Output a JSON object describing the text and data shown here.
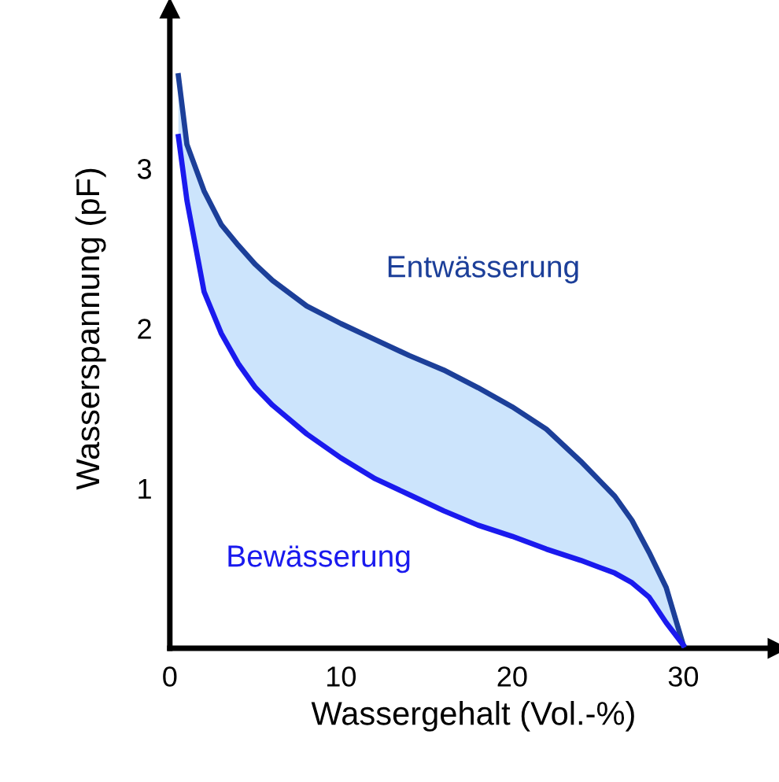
{
  "chart_data": {
    "type": "line",
    "xlabel": "Wassergehalt (Vol.-%)",
    "ylabel": "Wasserspannung (pF)",
    "x": [
      0.5,
      1,
      2,
      3,
      4,
      5,
      6,
      8,
      10,
      12,
      14,
      16,
      18,
      20,
      22,
      24,
      26,
      27,
      28,
      29,
      30
    ],
    "series": [
      {
        "name": "Entwässerung",
        "color": "#1c3f99",
        "values": [
          3.58,
          3.15,
          2.86,
          2.65,
          2.52,
          2.4,
          2.3,
          2.14,
          2.03,
          1.93,
          1.83,
          1.74,
          1.63,
          1.51,
          1.37,
          1.17,
          0.95,
          0.8,
          0.6,
          0.38,
          0.02
        ]
      },
      {
        "name": "Bewässerung",
        "color": "#1a1aee",
        "values": [
          3.2,
          2.8,
          2.23,
          1.97,
          1.78,
          1.63,
          1.52,
          1.34,
          1.19,
          1.06,
          0.96,
          0.86,
          0.77,
          0.7,
          0.62,
          0.55,
          0.47,
          0.41,
          0.32,
          0.16,
          0.02
        ]
      }
    ],
    "xlim": [
      0,
      35.5
    ],
    "ylim": [
      0,
      4
    ],
    "xticks": [
      0,
      10,
      20,
      30
    ],
    "yticks": [
      1,
      2,
      3
    ],
    "grid": false,
    "legend": false,
    "marker": "none",
    "line_style": "solid"
  }
}
